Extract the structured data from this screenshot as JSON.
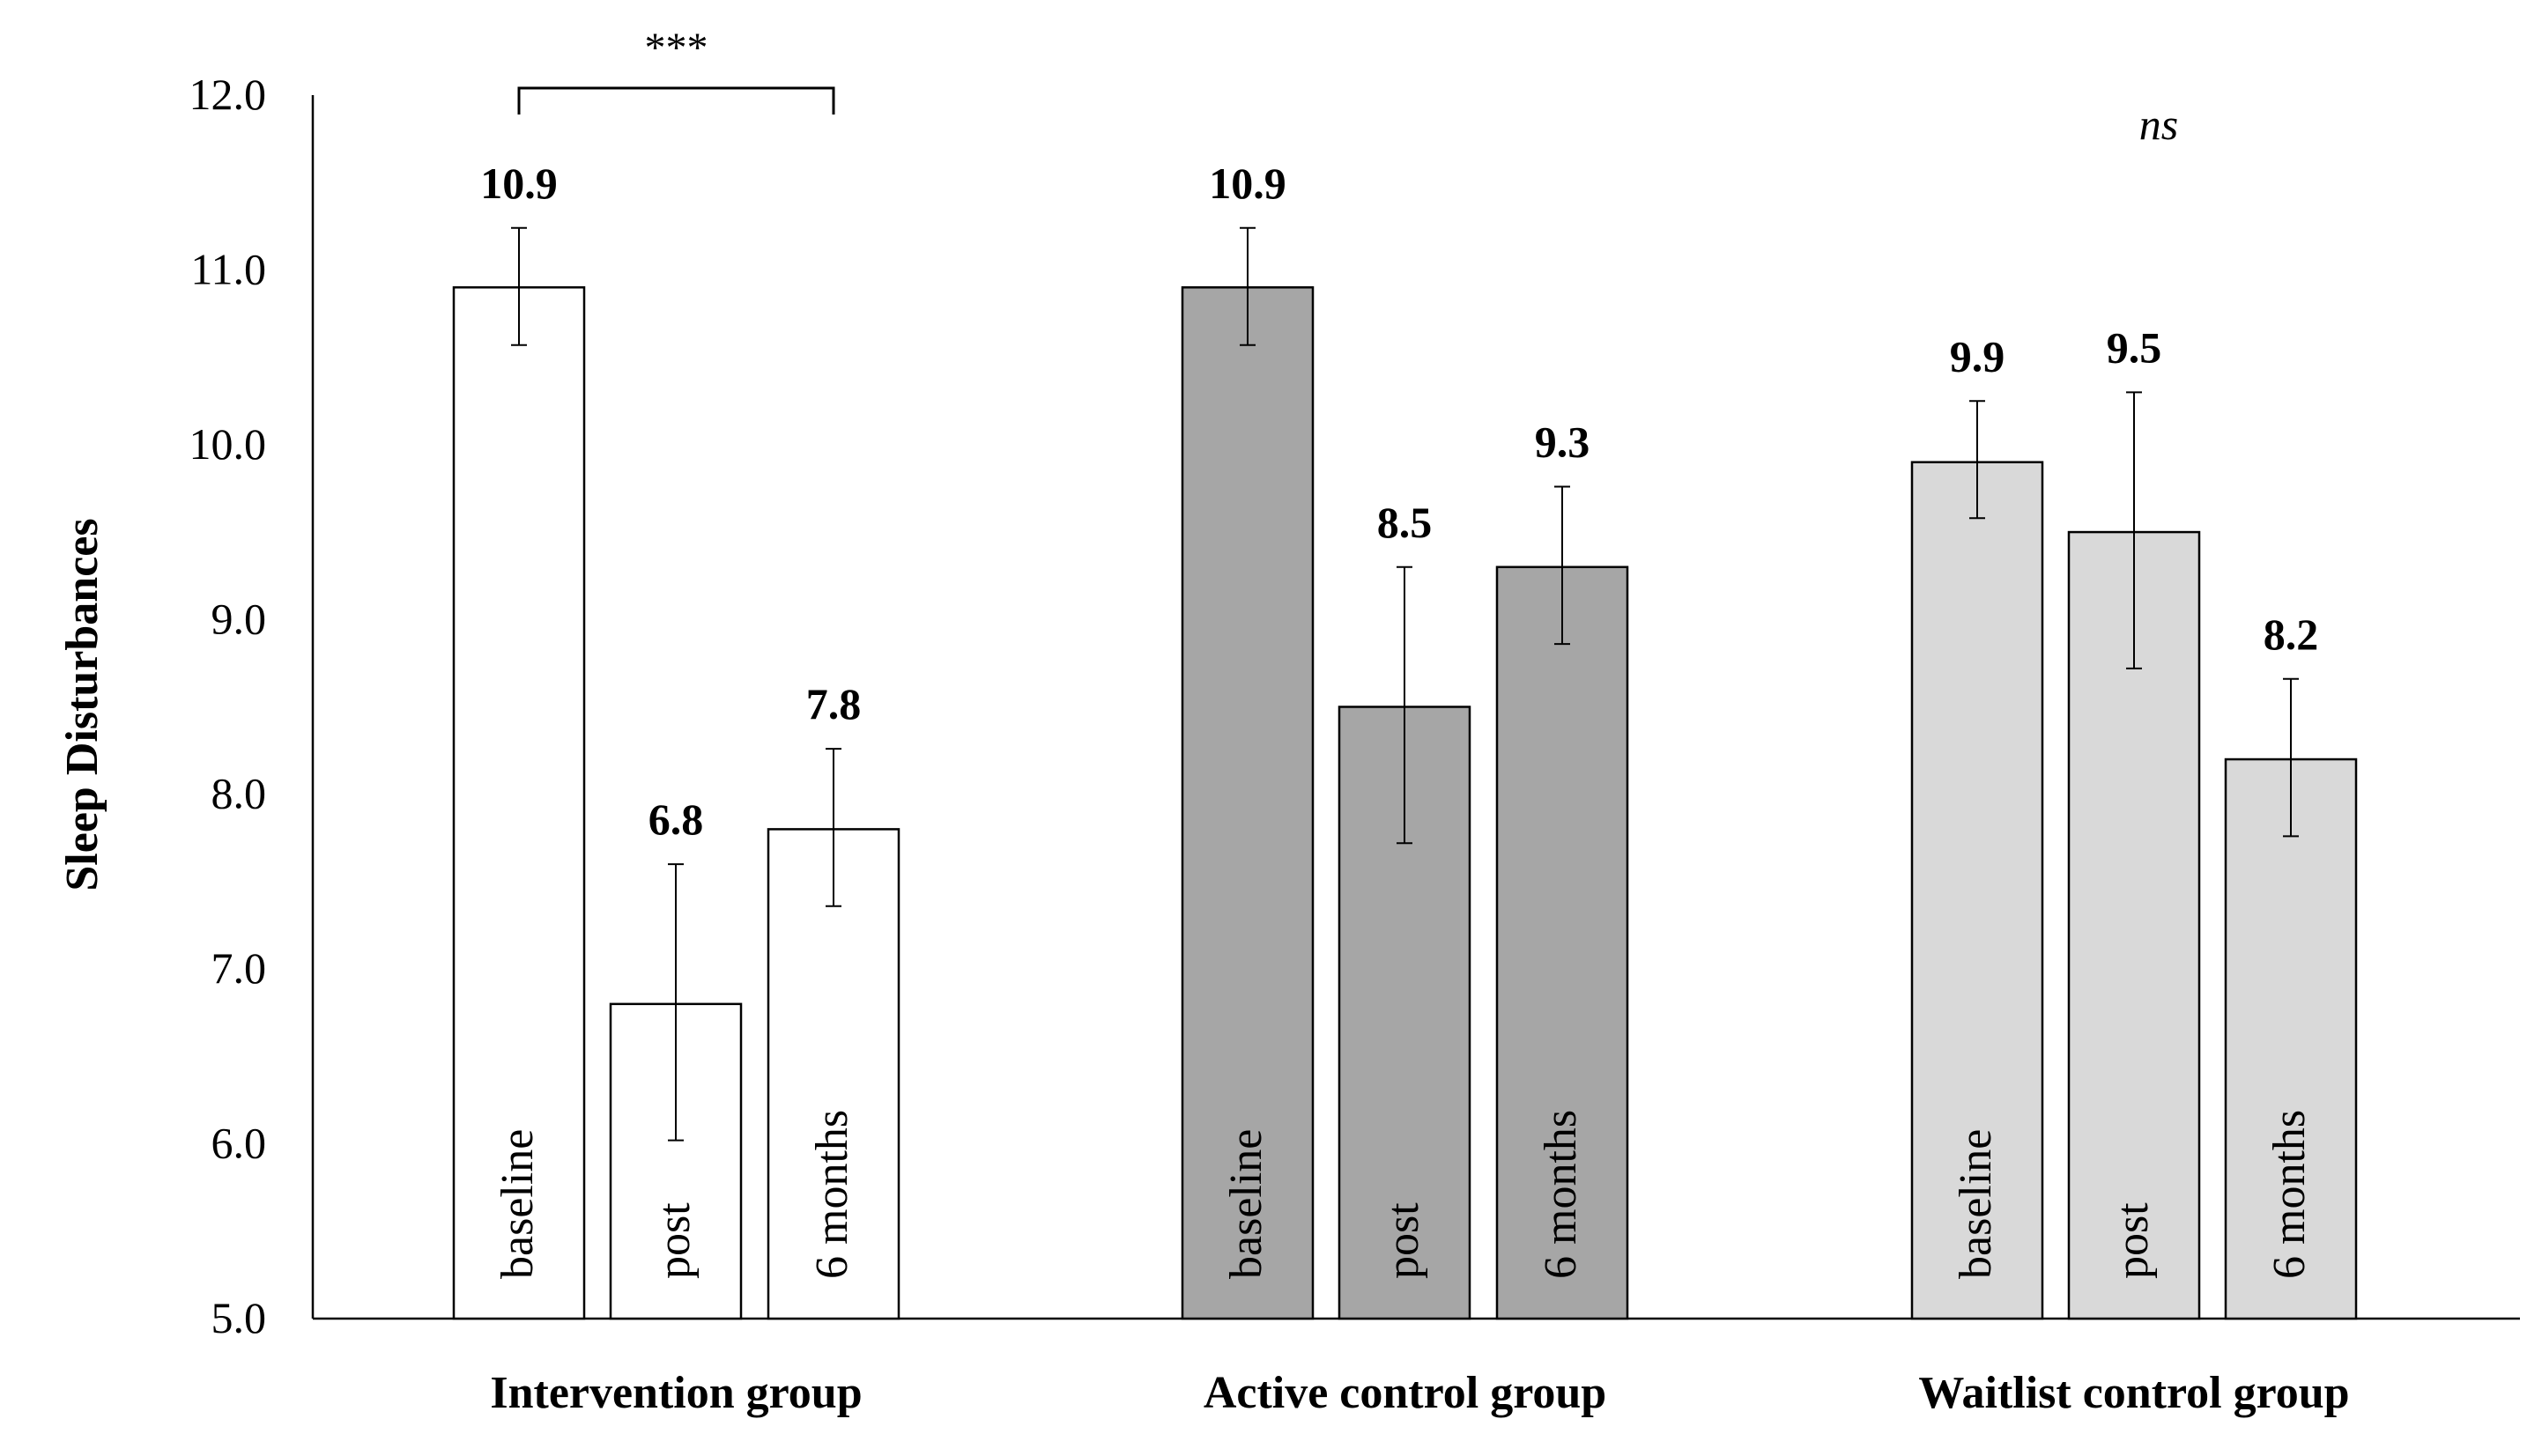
{
  "chart_data": {
    "type": "bar",
    "ylabel": "Sleep Disturbances",
    "xlabel": "",
    "ylim": [
      5.0,
      12.0
    ],
    "yticks": [
      "5.0",
      "6.0",
      "7.0",
      "8.0",
      "9.0",
      "10.0",
      "11.0",
      "12.0"
    ],
    "bar_labels": [
      "baseline",
      "post",
      "6 months"
    ],
    "groups": [
      {
        "name": "Intervention group",
        "color": "#ffffff",
        "values": [
          10.9,
          6.8,
          7.8
        ],
        "value_labels": [
          "10.9",
          "6.8",
          "7.8"
        ],
        "err_low": [
          10.57,
          6.02,
          7.36
        ],
        "err_high": [
          11.24,
          7.6,
          8.26
        ]
      },
      {
        "name": "Active control group",
        "color": "#a6a6a6",
        "values": [
          10.9,
          8.5,
          9.3
        ],
        "value_labels": [
          "10.9",
          "8.5",
          "9.3"
        ],
        "err_low": [
          10.57,
          7.72,
          8.86
        ],
        "err_high": [
          11.24,
          9.3,
          9.76
        ]
      },
      {
        "name": "Waitlist control group",
        "color": "#d9d9d9",
        "values": [
          9.9,
          9.5,
          8.2
        ],
        "value_labels": [
          "9.9",
          "9.5",
          "8.2"
        ],
        "err_low": [
          9.58,
          8.72,
          7.76
        ],
        "err_high": [
          10.25,
          10.3,
          8.66
        ]
      }
    ],
    "annotations": {
      "significance": "***",
      "nonsignificant": "ns"
    }
  }
}
